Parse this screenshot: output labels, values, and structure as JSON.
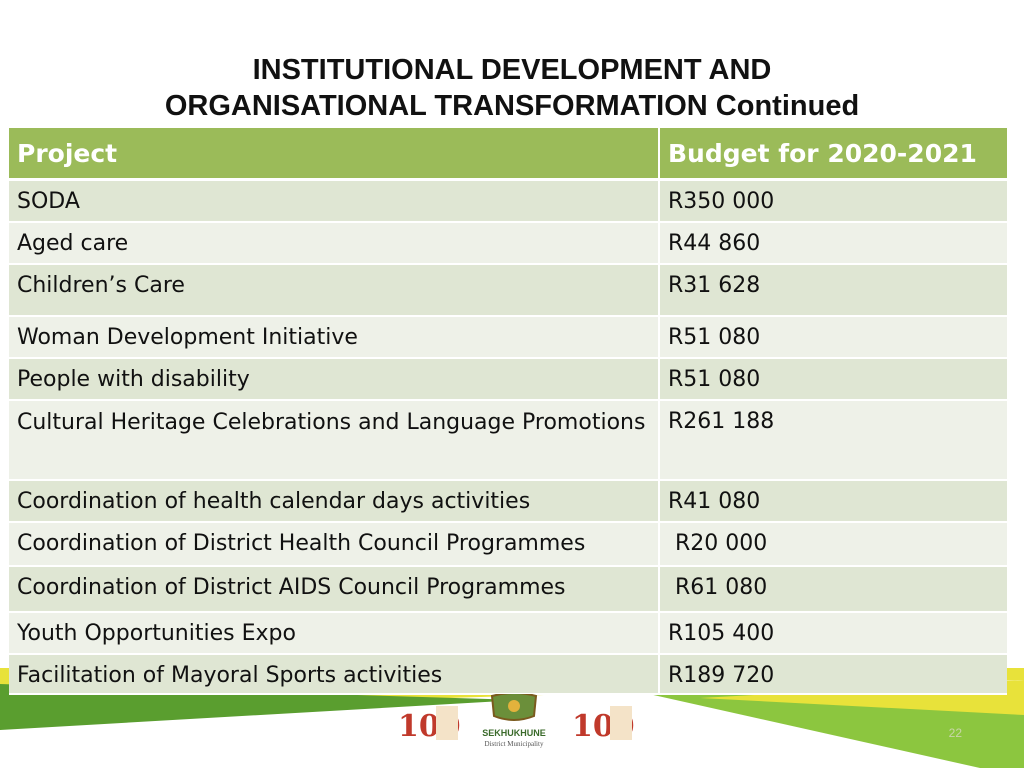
{
  "slide": {
    "title_line1": "INSTITUTIONAL DEVELOPMENT AND",
    "title_line2": "ORGANISATIONAL TRANSFORMATION Continued",
    "page_number": "22"
  },
  "table": {
    "headers": [
      "Project",
      "Budget for 2020-2021"
    ],
    "rows": [
      {
        "project": "SODA",
        "budget": "R350 000"
      },
      {
        "project": "Aged care",
        "budget": "R44 860"
      },
      {
        "project": "Children’s Care",
        "budget": "R31 628"
      },
      {
        "project": "Woman Development Initiative",
        "budget": "R51 080"
      },
      {
        "project": "People with disability",
        "budget": "R51 080"
      },
      {
        "project": "Cultural Heritage Celebrations  and Language Promotions",
        "budget": "R261 188"
      },
      {
        "project": "Coordination of health calendar days activities",
        "budget": "R41 080"
      },
      {
        "project": "Coordination of District Health Council Programmes",
        "budget": " R20 000"
      },
      {
        "project": "Coordination of District AIDS Council Programmes",
        "budget": " R61 080"
      },
      {
        "project": "Youth Opportunities Expo",
        "budget": "R105 400"
      },
      {
        "project": "Facilitation of Mayoral Sports activities",
        "budget": "R189 720"
      }
    ]
  },
  "footer": {
    "logo_text": "SEKHUKHUNE",
    "logo_subtext": "District Municipality",
    "colors": {
      "green": "#9bbb59",
      "yellow": "#e8e23a",
      "dark_green": "#5a9e2f"
    }
  }
}
